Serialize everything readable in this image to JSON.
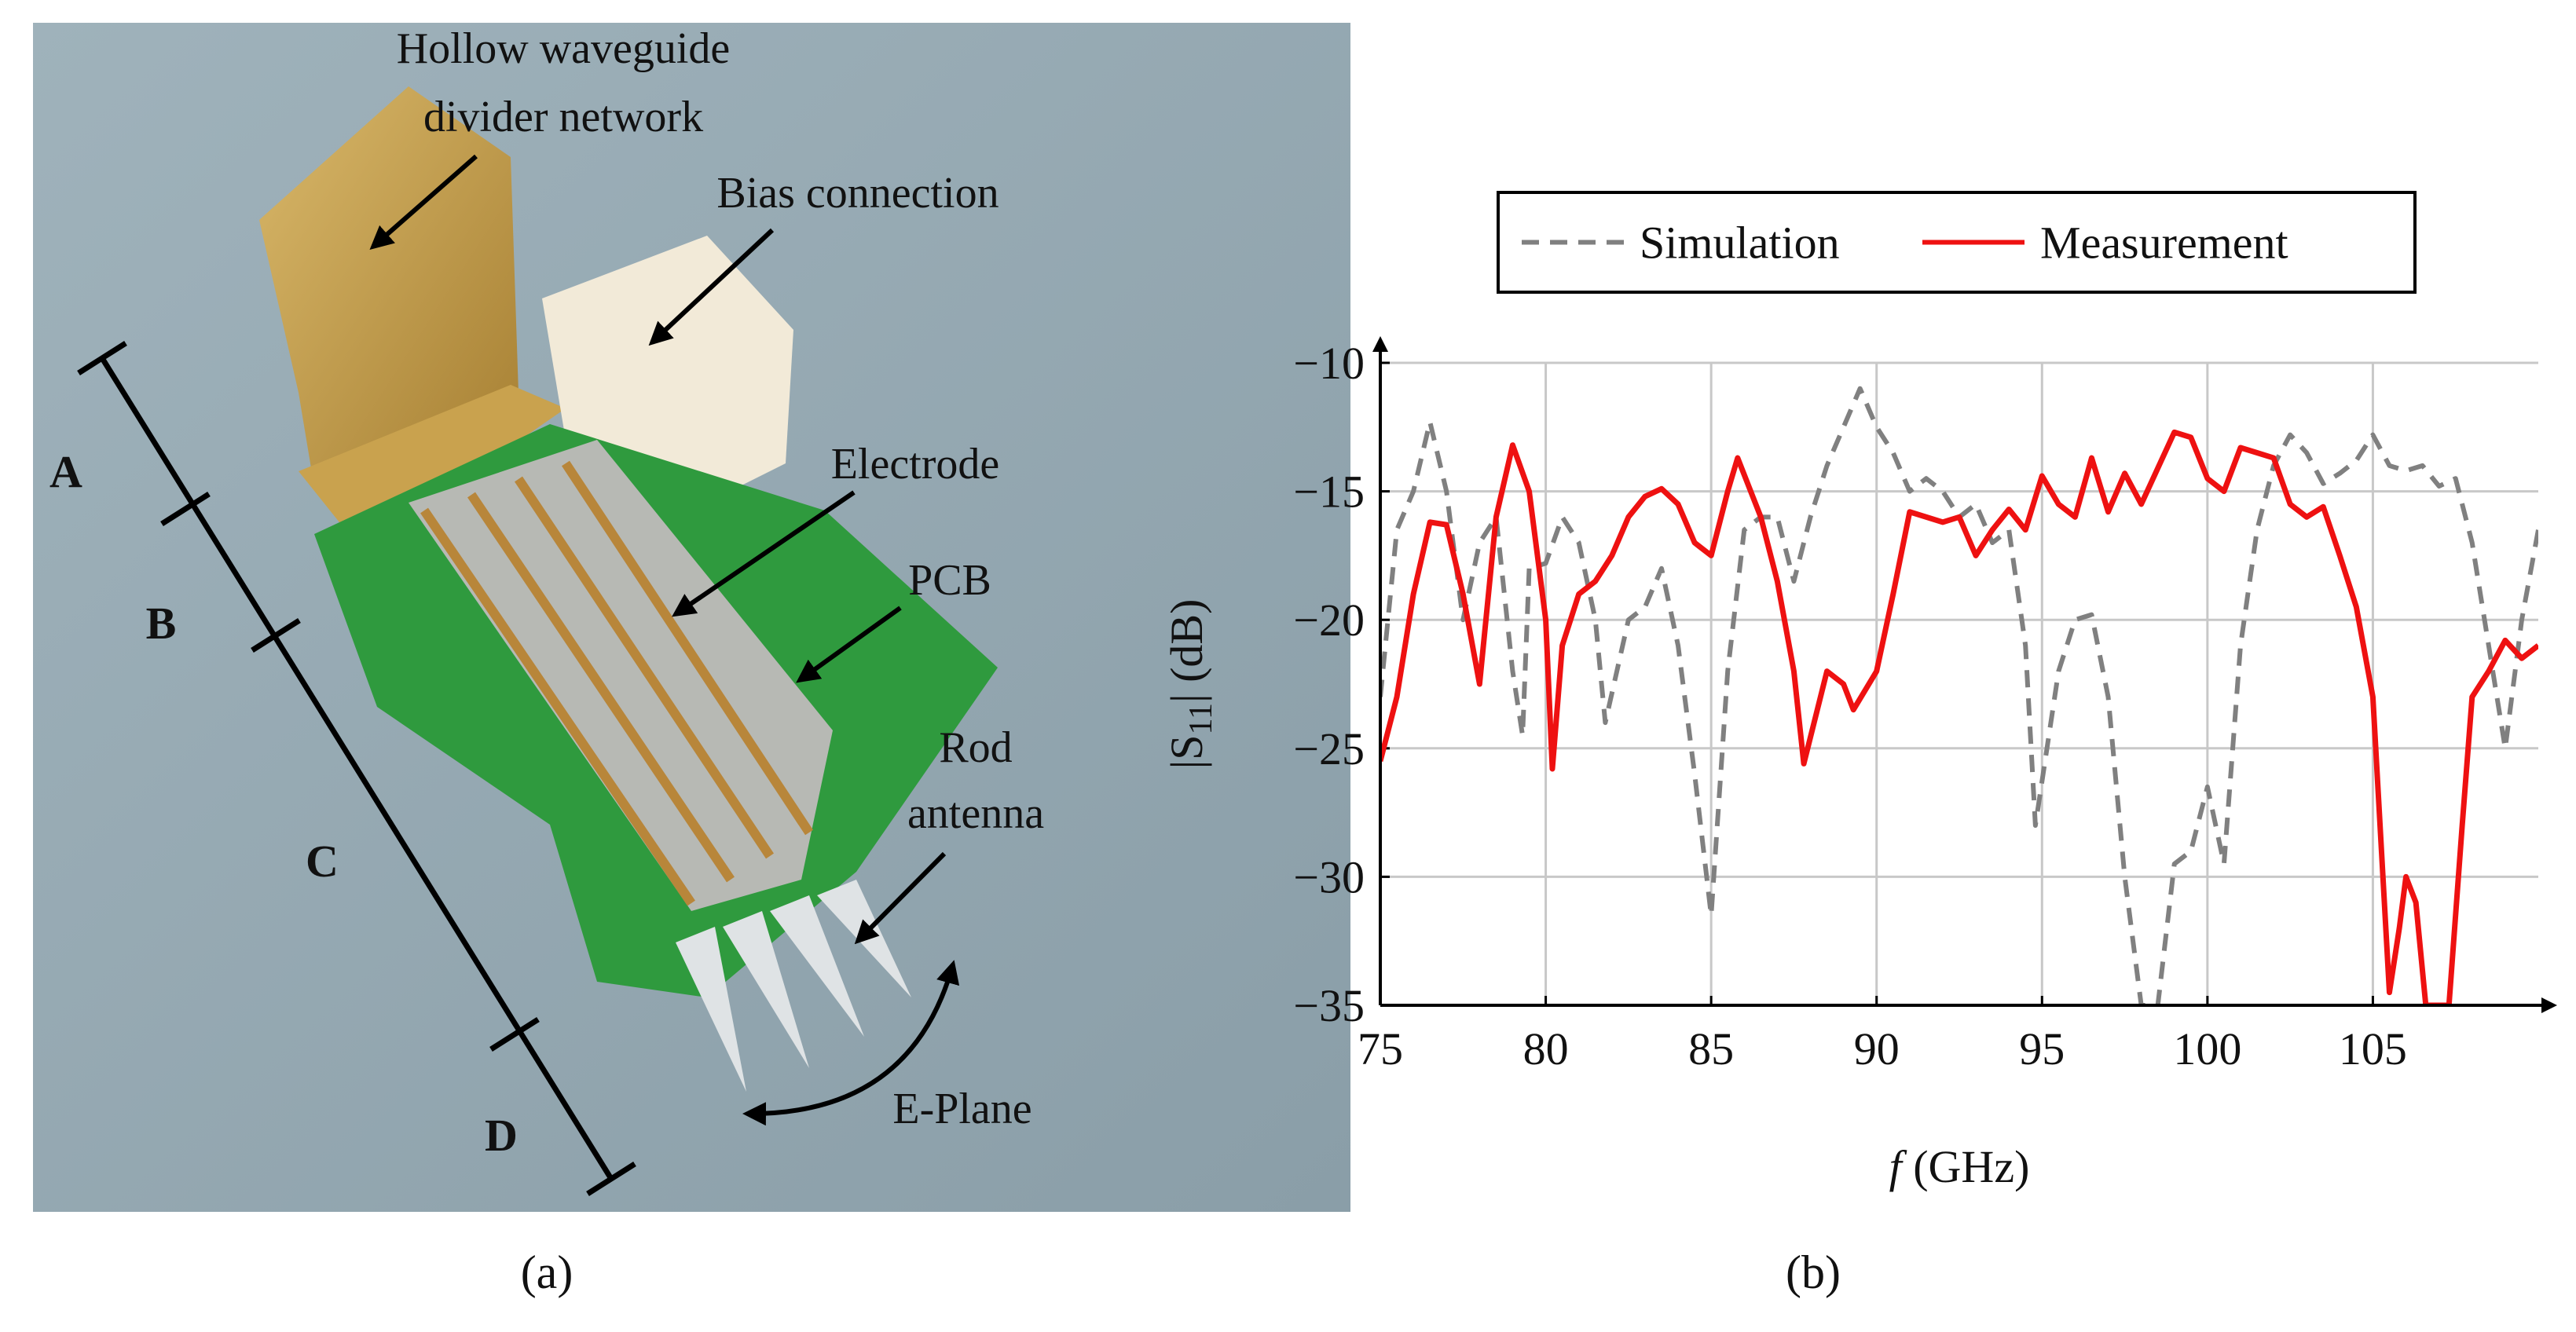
{
  "figure": {
    "photo": {
      "labels": [
        "Hollow waveguide",
        "divider network",
        "Bias connection",
        "Electrode",
        "PCB",
        "Rod",
        "antenna",
        "E-Plane"
      ],
      "sections": [
        "A",
        "B",
        "C",
        "D"
      ],
      "caption": "(a)"
    },
    "caption": "(b)"
  },
  "chart_data": {
    "type": "line",
    "x_label": [
      "f",
      " (GHz)"
    ],
    "y_label": [
      "|S",
      "11",
      "| (dB)"
    ],
    "xlim": [
      75,
      110
    ],
    "xticks": [
      75,
      80,
      85,
      90,
      95,
      100,
      105
    ],
    "ylim": [
      -35,
      -10
    ],
    "yticks": [
      {
        "value": -10,
        "label": "−10"
      },
      {
        "value": -15,
        "label": "−15"
      },
      {
        "value": -20,
        "label": "−20"
      },
      {
        "value": -25,
        "label": "−25"
      },
      {
        "value": -30,
        "label": "−30"
      },
      {
        "value": -35,
        "label": "−35"
      }
    ],
    "grid": true,
    "legend": "top",
    "series": [
      {
        "name": "Simulation",
        "color": "#808080",
        "line_style": "dashed",
        "x": [
          75,
          75.5,
          76,
          76.5,
          77,
          77.5,
          78,
          78.5,
          79,
          79.3,
          79.5,
          80,
          80.5,
          81,
          81.5,
          81.8,
          82.5,
          83,
          83.5,
          84,
          84.5,
          85,
          85.5,
          86,
          86.5,
          87,
          87.5,
          88,
          88.5,
          89,
          89.5,
          90,
          90.5,
          91,
          91.5,
          92,
          92.5,
          93,
          93.5,
          94,
          94.5,
          94.8,
          95.5,
          96,
          96.5,
          97,
          97.5,
          98,
          98.5,
          99,
          99.5,
          100,
          100.5,
          101,
          101.5,
          102,
          102.5,
          103,
          103.5,
          104,
          104.5,
          105,
          105.5,
          106,
          106.5,
          107,
          107.5,
          108,
          108.5,
          109,
          109.5,
          110
        ],
        "values": [
          -23,
          -16.5,
          -15,
          -12.3,
          -15,
          -20,
          -17,
          -16,
          -22,
          -24.5,
          -18,
          -17.8,
          -16,
          -17,
          -20,
          -24,
          -20,
          -19.5,
          -18,
          -21,
          -26,
          -31.5,
          -22,
          -16.5,
          -16,
          -16,
          -18.5,
          -16,
          -14,
          -12.5,
          -11,
          -12.5,
          -13.5,
          -15,
          -14.5,
          -15,
          -16,
          -15.5,
          -17,
          -16.5,
          -21,
          -28,
          -22,
          -20,
          -19.8,
          -23,
          -30,
          -35,
          -35,
          -29.5,
          -29,
          -26.5,
          -29.5,
          -21,
          -16.5,
          -14,
          -12.8,
          -13.5,
          -14.7,
          -14.3,
          -13.8,
          -12.8,
          -14,
          -14.2,
          -14,
          -14.8,
          -14.5,
          -17,
          -21,
          -25,
          -20,
          -16.5
        ]
      },
      {
        "name": "Measurement",
        "color": "#ee1111",
        "line_style": "solid",
        "x": [
          75,
          75.5,
          76,
          76.5,
          77,
          77.5,
          78,
          78.5,
          79,
          79.5,
          80,
          80.2,
          80.5,
          81,
          81.5,
          82,
          82.5,
          83,
          83.5,
          84,
          84.5,
          85,
          85.5,
          85.8,
          86.5,
          87,
          87.5,
          87.8,
          88.5,
          89,
          89.3,
          90,
          90.5,
          91,
          92,
          92.5,
          93,
          93.5,
          94,
          94.5,
          95,
          95.5,
          96,
          96.5,
          97,
          97.5,
          98,
          99,
          99.5,
          100,
          100.5,
          101,
          101.5,
          102,
          102.5,
          103,
          103.5,
          104,
          104.5,
          105,
          105.5,
          105.8,
          106,
          106.3,
          106.6,
          107,
          107.3,
          107.7,
          108,
          108.5,
          109,
          109.5,
          110
        ],
        "values": [
          -25.5,
          -23,
          -19,
          -16.2,
          -16.3,
          -19,
          -22.5,
          -16,
          -13.2,
          -15,
          -20,
          -25.8,
          -21,
          -19,
          -18.5,
          -17.5,
          -16,
          -15.2,
          -14.9,
          -15.5,
          -17,
          -17.5,
          -15,
          -13.7,
          -16,
          -18.5,
          -22,
          -25.6,
          -22,
          -22.5,
          -23.5,
          -22,
          -19,
          -15.8,
          -16.2,
          -16,
          -17.5,
          -16.5,
          -15.7,
          -16.5,
          -14.4,
          -15.5,
          -16,
          -13.7,
          -15.8,
          -14.3,
          -15.5,
          -12.7,
          -12.9,
          -14.5,
          -15,
          -13.3,
          -13.5,
          -13.7,
          -15.5,
          -16,
          -15.6,
          -17.5,
          -19.5,
          -23,
          -34.5,
          -32,
          -30,
          -31,
          -35,
          -35,
          -35,
          -28,
          -23,
          -22,
          -20.8,
          -21.5,
          -21
        ]
      }
    ]
  }
}
